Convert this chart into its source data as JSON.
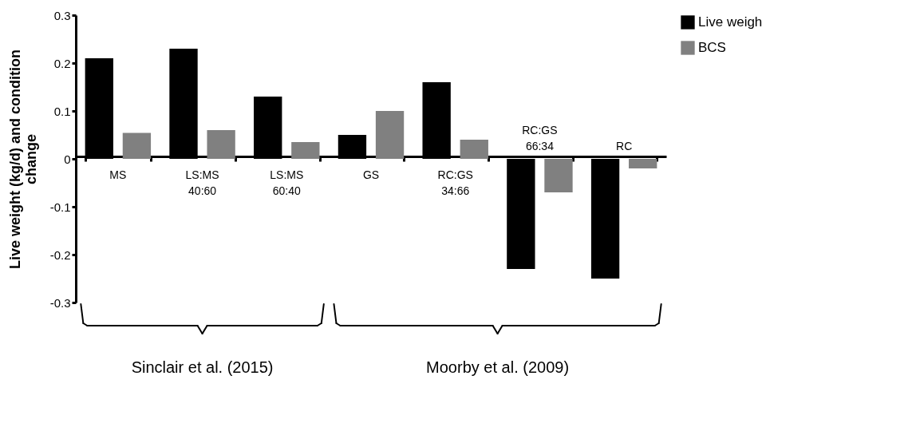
{
  "chart_data": {
    "type": "bar",
    "ylabel": "Live weight (kg/d)  and condition change",
    "categories": [
      "MS",
      "LS:MS 40:60",
      "LS:MS 60:40",
      "GS",
      "RC:GS 34:66",
      "RC:GS 66:34",
      "RC"
    ],
    "series": [
      {
        "name": "Live weigh",
        "color": "#000000",
        "values": [
          0.21,
          0.23,
          0.13,
          0.05,
          0.16,
          -0.23,
          -0.25
        ]
      },
      {
        "name": "BCS",
        "color": "#808080",
        "values": [
          0.054,
          0.06,
          0.035,
          0.1,
          0.04,
          -0.07,
          -0.02
        ]
      }
    ],
    "ylim": [
      -0.3,
      0.3
    ],
    "yticks": [
      -0.3,
      -0.2,
      -0.1,
      0,
      0.1,
      0.2,
      0.3
    ],
    "grid": false,
    "legend": "right",
    "annotations": [
      "Sinclair et al. (2015)",
      "Moorby et al. (2009)"
    ]
  }
}
